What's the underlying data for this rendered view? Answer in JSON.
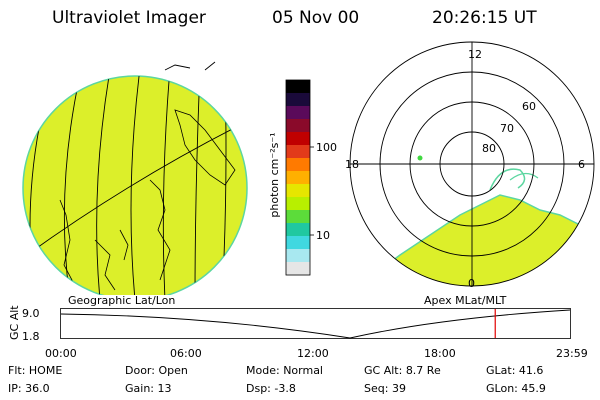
{
  "header": {
    "instrument": "Ultraviolet Imager",
    "date": "05 Nov 00",
    "time": "20:26:15 UT"
  },
  "colorbar": {
    "unit": "photon cm⁻²s⁻¹",
    "ticks": [
      "100",
      "10"
    ],
    "colors": [
      "#000000",
      "#1a0a3a",
      "#5a0a5a",
      "#8a0a2a",
      "#c00000",
      "#e23a1a",
      "#ff7a00",
      "#ffb000",
      "#e6e600",
      "#b8ef00",
      "#5cdc3a",
      "#20c8a0",
      "#40d8e0",
      "#a8e8f0",
      "#e6e6e6"
    ]
  },
  "left_map": {
    "label": "Geographic Lat/Lon",
    "fill": "#dcef2a"
  },
  "right_map": {
    "label": "Apex MLat/MLT",
    "mlt_labels": [
      "12",
      "18",
      "6",
      "0"
    ],
    "lat_labels": [
      "60",
      "70",
      "80"
    ],
    "fill": "#dcef2a"
  },
  "timeline": {
    "y_axis_label": "GC Alt",
    "y_ticks": [
      "9.0",
      "1.8"
    ],
    "x_ticks": [
      "00:00",
      "06:00",
      "12:00",
      "18:00",
      "23:59"
    ],
    "current_time_fraction": 0.8531
  },
  "info_rows": [
    [
      {
        "label": "Flt:",
        "value": "HOME"
      },
      {
        "label": "Door:",
        "value": "Open"
      },
      {
        "label": "Mode:",
        "value": "Normal"
      },
      {
        "label": "GC Alt:",
        "value": "8.7 Re"
      },
      {
        "label": "GLat:",
        "value": "41.6"
      }
    ],
    [
      {
        "label": "IP:",
        "value": "36.0"
      },
      {
        "label": "Gain:",
        "value": "13"
      },
      {
        "label": "Dsp:",
        "value": "-3.8"
      },
      {
        "label": "Seq:",
        "value": "39"
      },
      {
        "label": "GLon:",
        "value": "45.9"
      }
    ]
  ]
}
